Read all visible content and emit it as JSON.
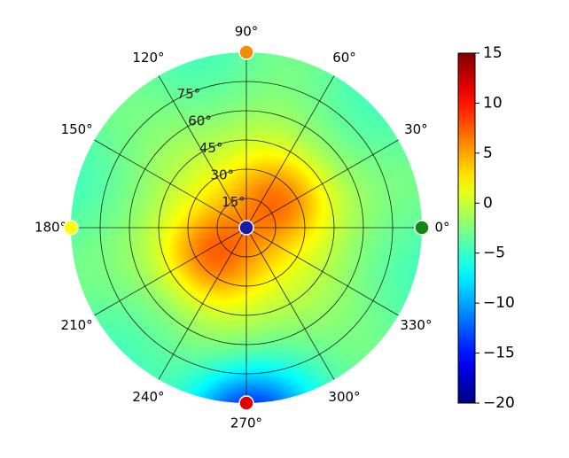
{
  "chart_data": {
    "type": "heatmap",
    "projection": "polar",
    "grid": true,
    "angle_ticks": [
      "0°",
      "30°",
      "60°",
      "90°",
      "120°",
      "150°",
      "180°",
      "210°",
      "240°",
      "270°",
      "300°",
      "330°"
    ],
    "radial_ticks": [
      "15°",
      "30°",
      "45°",
      "60°",
      "75°"
    ],
    "radial_tick_values": [
      15,
      30,
      45,
      60,
      75
    ],
    "radial_max": 90,
    "colorbar": {
      "colormap": "jet",
      "min": -20,
      "max": 15,
      "ticks": [
        15,
        10,
        5,
        0,
        -5,
        -10,
        -15,
        -20
      ],
      "tick_labels": [
        "15",
        "10",
        "5",
        "0",
        "−5",
        "−10",
        "−15",
        "−20"
      ],
      "placement": "right"
    },
    "field_description_values": {
      "center_level": 5,
      "lobes": [
        {
          "azimuth_deg": 40,
          "elevation_deg": 25,
          "peak": 9
        },
        {
          "azimuth_deg": 220,
          "elevation_deg": 25,
          "peak": 9.5
        },
        {
          "azimuth_deg": 135,
          "elevation_deg": 30,
          "peak": 4
        },
        {
          "azimuth_deg": 315,
          "elevation_deg": 30,
          "peak": 4
        }
      ],
      "edge_level": -4,
      "low_region": {
        "azimuth_deg": 270,
        "elevation_deg": 88,
        "level": -14
      }
    },
    "markers": [
      {
        "name": "center",
        "azimuth_deg": 0,
        "elevation_deg": 0,
        "color": "#1a1aa6"
      },
      {
        "name": "east",
        "azimuth_deg": 0,
        "elevation_deg": 90,
        "color": "#118811"
      },
      {
        "name": "north",
        "azimuth_deg": 90,
        "elevation_deg": 90,
        "color": "#f28c00"
      },
      {
        "name": "west",
        "azimuth_deg": 180,
        "elevation_deg": 90,
        "color": "#ffff00"
      },
      {
        "name": "south",
        "azimuth_deg": 270,
        "elevation_deg": 90,
        "color": "#e00000"
      }
    ]
  }
}
